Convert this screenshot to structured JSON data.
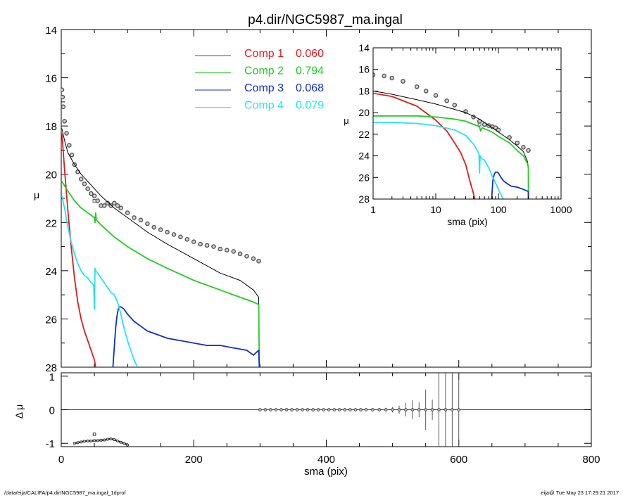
{
  "title": "p4.dir/NGC5987_ma.ingal",
  "footer": {
    "left": "/data/eija/CALIFA/p4.dir/NGC5987_ma.ingal_1dprof",
    "right": "eija@  Tue May 23 17:29:21 2017"
  },
  "legend": [
    {
      "label": "Comp 1",
      "value": "0.060",
      "color": "#e31a1c"
    },
    {
      "label": "Comp 2",
      "value": "0.794",
      "color": "#22cc22"
    },
    {
      "label": "Comp 3",
      "value": "0.068",
      "color": "#1030c0"
    },
    {
      "label": "Comp 4",
      "value": "0.079",
      "color": "#22e5ee"
    }
  ],
  "colors": {
    "total": "#000000",
    "data": "#555555"
  },
  "chart_data": [
    {
      "id": "main",
      "type": "line",
      "xlabel": "",
      "ylabel": "μ",
      "xlim": [
        0,
        800
      ],
      "ylim": [
        28,
        14
      ],
      "yticks": [
        "14",
        "16",
        "18",
        "20",
        "22",
        "24",
        "26",
        "28"
      ],
      "series": [
        {
          "name": "data",
          "x": [
            1,
            2,
            3,
            5,
            8,
            12,
            16,
            20,
            25,
            30,
            35,
            40,
            45,
            50,
            55,
            60,
            65,
            70,
            75,
            80,
            85,
            90,
            100,
            110,
            120,
            130,
            140,
            150,
            160,
            170,
            180,
            190,
            200,
            210,
            220,
            230,
            240,
            250,
            260,
            270,
            280,
            290,
            298
          ],
          "y": [
            16.5,
            16.8,
            17.2,
            17.8,
            18.3,
            18.8,
            19.2,
            19.6,
            19.9,
            20.2,
            20.4,
            20.6,
            20.8,
            20.9,
            21.1,
            21.3,
            21.3,
            21.2,
            21.3,
            21.2,
            21.3,
            21.4,
            21.6,
            21.8,
            21.9,
            22.05,
            22.2,
            22.3,
            22.4,
            22.5,
            22.6,
            22.7,
            22.8,
            22.9,
            22.95,
            23.0,
            23.1,
            23.15,
            23.2,
            23.3,
            23.4,
            23.5,
            23.6
          ]
        },
        {
          "name": "outlier",
          "x": [
            50
          ],
          "y": [
            21.1
          ]
        },
        {
          "name": "total",
          "x": [
            1,
            5,
            10,
            20,
            30,
            40,
            50,
            60,
            80,
            100,
            130,
            160,
            200,
            240,
            270,
            290,
            298,
            299
          ],
          "y": [
            18.1,
            18.6,
            19.1,
            19.6,
            20.0,
            20.3,
            20.6,
            20.9,
            21.4,
            21.8,
            22.4,
            22.9,
            23.5,
            24.1,
            24.4,
            24.8,
            25.1,
            28
          ]
        },
        {
          "name": "Comp 1",
          "x": [
            1,
            5,
            10,
            15,
            20,
            25,
            30,
            35,
            40,
            45,
            50,
            52
          ],
          "y": [
            18.3,
            19.8,
            21.5,
            23.0,
            24.3,
            25.3,
            26.0,
            26.5,
            26.9,
            27.3,
            27.7,
            28
          ]
        },
        {
          "name": "Comp 2",
          "x": [
            1,
            10,
            20,
            30,
            40,
            50,
            51,
            52,
            53,
            60,
            80,
            100,
            130,
            160,
            200,
            240,
            270,
            290,
            298,
            299
          ],
          "y": [
            20.3,
            20.7,
            21.1,
            21.4,
            21.6,
            21.8,
            22.0,
            21.6,
            21.9,
            22.1,
            22.6,
            23.0,
            23.5,
            23.9,
            24.4,
            24.8,
            25.1,
            25.3,
            25.4,
            28
          ]
        },
        {
          "name": "Comp 3",
          "x": [
            78,
            80,
            82,
            84,
            86,
            88,
            90,
            95,
            100,
            110,
            120,
            130,
            140,
            150,
            160,
            180,
            200,
            220,
            240,
            260,
            280,
            290,
            294,
            298,
            299
          ],
          "y": [
            28,
            27.2,
            26.4,
            25.9,
            25.6,
            25.5,
            25.5,
            25.6,
            25.8,
            26.1,
            26.3,
            26.5,
            26.6,
            26.7,
            26.8,
            26.9,
            27.0,
            27.1,
            27.1,
            27.2,
            27.3,
            27.5,
            27.4,
            27.3,
            28
          ]
        },
        {
          "name": "Comp 4",
          "x": [
            1,
            5,
            10,
            15,
            20,
            25,
            30,
            35,
            40,
            45,
            49,
            50,
            51,
            52,
            55,
            60,
            65,
            70,
            75,
            80,
            85,
            90,
            95,
            100,
            105,
            110,
            115
          ],
          "y": [
            20.9,
            21.4,
            22.2,
            22.8,
            23.3,
            23.7,
            24.0,
            24.2,
            24.3,
            24.5,
            24.6,
            25.6,
            23.9,
            24.0,
            24.1,
            24.3,
            24.5,
            24.7,
            24.9,
            25.0,
            25.3,
            25.8,
            26.4,
            26.9,
            27.3,
            27.7,
            28
          ]
        }
      ]
    },
    {
      "id": "inset",
      "type": "line",
      "xlabel": "sma (pix)",
      "ylabel": "μ",
      "xscale": "log",
      "xlim": [
        1,
        1000
      ],
      "ylim": [
        28,
        14
      ],
      "xticks": [
        "1",
        "10",
        "100",
        "1000"
      ],
      "yticks": [
        "14",
        "16",
        "18",
        "20",
        "22",
        "24",
        "26",
        "28"
      ],
      "series": [
        {
          "name": "data",
          "x": [
            1,
            1.5,
            2,
            3,
            5,
            7,
            10,
            15,
            20,
            30,
            40,
            50,
            60,
            70,
            80,
            90,
            100,
            150,
            200,
            250,
            300
          ],
          "y": [
            16.5,
            16.6,
            16.8,
            17.1,
            17.6,
            18.0,
            18.4,
            18.9,
            19.3,
            19.9,
            20.4,
            20.8,
            21.1,
            21.2,
            21.3,
            21.4,
            21.6,
            22.3,
            22.8,
            23.2,
            23.5
          ]
        },
        {
          "name": "outlier",
          "x": [
            50
          ],
          "y": [
            21.1
          ]
        },
        {
          "name": "total",
          "x": [
            1,
            2,
            5,
            10,
            20,
            30,
            50,
            80,
            100,
            150,
            200,
            250,
            290,
            300
          ],
          "y": [
            18.0,
            18.3,
            18.8,
            19.2,
            19.7,
            20.0,
            20.6,
            21.4,
            21.8,
            22.5,
            23.1,
            23.6,
            24.5,
            25.0
          ]
        },
        {
          "name": "Comp 1",
          "x": [
            1,
            2,
            5,
            10,
            15,
            20,
            25,
            30,
            35,
            40,
            42
          ],
          "y": [
            18.2,
            18.5,
            19.4,
            20.7,
            21.7,
            22.8,
            23.7,
            24.8,
            26.3,
            27.5,
            28
          ]
        },
        {
          "name": "Comp 2",
          "x": [
            1,
            5,
            10,
            20,
            30,
            50,
            52,
            55,
            80,
            100,
            150,
            200,
            250,
            290,
            300,
            301
          ],
          "y": [
            20.3,
            20.3,
            20.4,
            20.6,
            20.8,
            21.3,
            21.7,
            21.4,
            21.8,
            22.2,
            22.8,
            23.5,
            24.0,
            24.7,
            25.1,
            28
          ]
        },
        {
          "name": "Comp 3",
          "x": [
            78,
            80,
            82,
            86,
            90,
            95,
            100,
            110,
            120,
            140,
            160,
            200,
            250,
            300,
            301
          ],
          "y": [
            28,
            27.0,
            26.2,
            25.7,
            25.5,
            25.5,
            25.6,
            26.0,
            26.3,
            26.6,
            26.8,
            26.9,
            27.1,
            27.3,
            28
          ]
        },
        {
          "name": "Comp 4",
          "x": [
            1,
            2,
            5,
            10,
            20,
            30,
            40,
            49,
            50,
            51,
            55,
            60,
            70,
            80,
            90,
            100,
            110,
            120
          ],
          "y": [
            20.9,
            20.9,
            21.0,
            21.2,
            21.6,
            22.1,
            22.9,
            23.8,
            25.6,
            24.0,
            24.3,
            24.4,
            25.1,
            25.9,
            26.5,
            27.1,
            27.6,
            28
          ]
        }
      ]
    },
    {
      "id": "residual",
      "type": "scatter",
      "xlabel": "sma (pix)",
      "ylabel": "Δ μ",
      "xlim": [
        0,
        800
      ],
      "ylim": [
        -1.1,
        1.1
      ],
      "xticks": [
        "0",
        "200",
        "400",
        "600",
        "800"
      ],
      "yticks": [
        "1",
        "0",
        "-1"
      ],
      "zero_line": true,
      "lowband": {
        "x": [
          20,
          25,
          30,
          35,
          40,
          45,
          50,
          55,
          60,
          65,
          70,
          75,
          80,
          85,
          90,
          95,
          100
        ],
        "y": [
          -1.0,
          -0.98,
          -0.96,
          -0.94,
          -0.93,
          -0.93,
          -0.92,
          -0.92,
          -0.91,
          -0.9,
          -0.88,
          -0.87,
          -0.89,
          -0.93,
          -0.97,
          -1.0,
          -1.05
        ]
      },
      "lowband_point": {
        "x": 50,
        "y": -0.73
      },
      "points": {
        "x": [
          300,
          308,
          316,
          324,
          332,
          340,
          348,
          356,
          364,
          372,
          380,
          388,
          396,
          404,
          412,
          420,
          428,
          436,
          444,
          452,
          460,
          470,
          480,
          490,
          500,
          510,
          520,
          530,
          540,
          550,
          560,
          570,
          580,
          590,
          600
        ],
        "err": [
          0.02,
          0.02,
          0.02,
          0.02,
          0.02,
          0.02,
          0.02,
          0.02,
          0.02,
          0.02,
          0.02,
          0.02,
          0.02,
          0.02,
          0.03,
          0.03,
          0.03,
          0.03,
          0.03,
          0.04,
          0.04,
          0.04,
          0.05,
          0.06,
          0.08,
          0.12,
          0.2,
          0.28,
          0.22,
          0.6,
          0.3,
          1.2,
          1.2,
          1.2,
          1.2
        ]
      }
    }
  ]
}
